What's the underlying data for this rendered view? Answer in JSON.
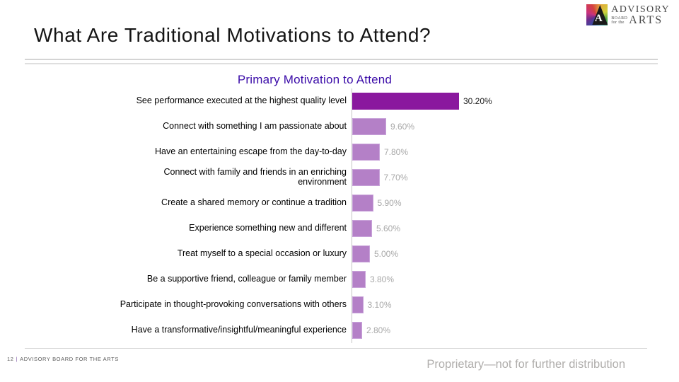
{
  "title": "What Are Traditional Motivations to Attend?",
  "logo": {
    "monogram": "A",
    "line1": "ADVISORY",
    "board": "BOARD",
    "for_the": "for the",
    "arts": "ARTS"
  },
  "chart_data": {
    "type": "bar",
    "orientation": "horizontal",
    "title": "Primary Motivation to Attend",
    "title_color": "#3A0BA8",
    "categories": [
      "See performance executed at the highest quality level",
      "Connect with something I am passionate about",
      "Have an entertaining escape from the day-to-day",
      "Connect with family and friends in an enriching environment",
      "Create a shared memory or continue a tradition",
      "Experience something new and different",
      "Treat myself to a special occasion or luxury",
      "Be a supportive friend, colleague or family member",
      "Participate in thought-provoking conversations with others",
      "Have a transformative/insightful/meaningful experience"
    ],
    "values": [
      30.2,
      9.6,
      7.8,
      7.7,
      5.9,
      5.6,
      5.0,
      3.8,
      3.1,
      2.8
    ],
    "value_labels": [
      "30.20%",
      "9.60%",
      "7.80%",
      "7.70%",
      "5.90%",
      "5.60%",
      "5.00%",
      "3.80%",
      "3.10%",
      "2.80%"
    ],
    "xlabel": "",
    "ylabel": "",
    "xlim": [
      0,
      32
    ],
    "grid": false,
    "legend": false,
    "highlight_index": 0,
    "highlight_bar_color": "#8A189E",
    "bar_color": "#B480C7",
    "bar_border_color": "#C9A4DA",
    "highlight_value_color": "#1A1A1A",
    "value_color": "#A8A8A8",
    "axis_line_color": "#C6C6C6"
  },
  "footer": {
    "page_number": "12",
    "separator": "|",
    "org": "ADVISORY BOARD FOR THE ARTS",
    "proprietary": "Proprietary—not for further distribution"
  }
}
